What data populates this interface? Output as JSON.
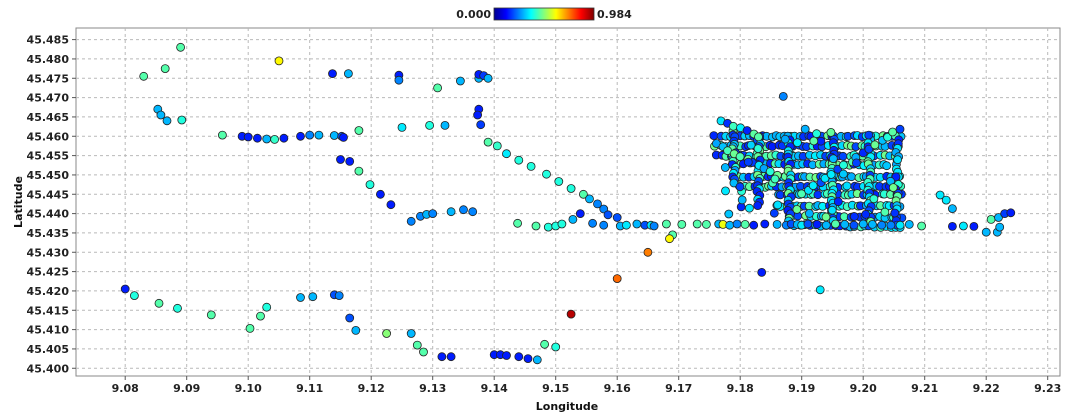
{
  "chart_data": {
    "type": "scatter",
    "title": "",
    "xlabel": "Longitude",
    "ylabel": "Latitude",
    "xlim": [
      9.072,
      9.232
    ],
    "ylim": [
      45.398,
      45.488
    ],
    "x_ticks": [
      "9.08",
      "9.09",
      "9.10",
      "9.11",
      "9.12",
      "9.13",
      "9.14",
      "9.15",
      "9.16",
      "9.17",
      "9.18",
      "9.19",
      "9.20",
      "9.21",
      "9.22",
      "9.23"
    ],
    "y_ticks": [
      "45.400",
      "45.405",
      "45.410",
      "45.415",
      "45.420",
      "45.425",
      "45.430",
      "45.435",
      "45.440",
      "45.445",
      "45.450",
      "45.455",
      "45.460",
      "45.465",
      "45.470",
      "45.475",
      "45.480",
      "45.485"
    ],
    "grid": true,
    "colorbar": {
      "min_label": "0.000",
      "max_label": "0.984",
      "min": 0.0,
      "max": 0.984,
      "colormap": "jet",
      "placement": "top-center"
    },
    "points": [
      [
        9.083,
        45.4755,
        0.45
      ],
      [
        9.0865,
        45.4775,
        0.45
      ],
      [
        9.089,
        45.483,
        0.45
      ],
      [
        9.105,
        45.4795,
        0.62
      ],
      [
        9.0853,
        45.467,
        0.3
      ],
      [
        9.0858,
        45.4655,
        0.3
      ],
      [
        9.0868,
        45.464,
        0.3
      ],
      [
        9.0892,
        45.4642,
        0.4
      ],
      [
        9.0958,
        45.4603,
        0.45
      ],
      [
        9.099,
        45.46,
        0.15
      ],
      [
        9.1,
        45.4598,
        0.15
      ],
      [
        9.1015,
        45.4595,
        0.15
      ],
      [
        9.103,
        45.4593,
        0.3
      ],
      [
        9.1043,
        45.4592,
        0.42
      ],
      [
        9.1058,
        45.4595,
        0.15
      ],
      [
        9.1085,
        45.46,
        0.15
      ],
      [
        9.11,
        45.4603,
        0.25
      ],
      [
        9.1115,
        45.4603,
        0.3
      ],
      [
        9.114,
        45.4602,
        0.3
      ],
      [
        9.1152,
        45.46,
        0.2
      ],
      [
        9.1155,
        45.4597,
        0.15
      ],
      [
        9.1137,
        45.4762,
        0.15
      ],
      [
        9.1163,
        45.4762,
        0.3
      ],
      [
        9.1245,
        45.4758,
        0.15
      ],
      [
        9.1245,
        45.4745,
        0.25
      ],
      [
        9.118,
        45.4615,
        0.45
      ],
      [
        9.125,
        45.4623,
        0.35
      ],
      [
        9.1295,
        45.4628,
        0.4
      ],
      [
        9.132,
        45.4628,
        0.3
      ],
      [
        9.1308,
        45.4725,
        0.45
      ],
      [
        9.1345,
        45.4743,
        0.3
      ],
      [
        9.1375,
        45.475,
        0.3
      ],
      [
        9.1375,
        45.476,
        0.15
      ],
      [
        9.1383,
        45.4757,
        0.18
      ],
      [
        9.139,
        45.475,
        0.3
      ],
      [
        9.1375,
        45.467,
        0.15
      ],
      [
        9.1373,
        45.4655,
        0.15
      ],
      [
        9.1378,
        45.463,
        0.18
      ],
      [
        9.139,
        45.4585,
        0.45
      ],
      [
        9.1405,
        45.4575,
        0.42
      ],
      [
        9.142,
        45.4555,
        0.35
      ],
      [
        9.144,
        45.4538,
        0.4
      ],
      [
        9.146,
        45.4522,
        0.4
      ],
      [
        9.1485,
        45.4502,
        0.4
      ],
      [
        9.1505,
        45.4483,
        0.4
      ],
      [
        9.1525,
        45.4465,
        0.4
      ],
      [
        9.1545,
        45.445,
        0.45
      ],
      [
        9.1555,
        45.4438,
        0.3
      ],
      [
        9.1568,
        45.4425,
        0.25
      ],
      [
        9.1578,
        45.4412,
        0.25
      ],
      [
        9.1585,
        45.4397,
        0.2
      ],
      [
        9.16,
        45.439,
        0.2
      ],
      [
        9.115,
        45.454,
        0.15
      ],
      [
        9.1165,
        45.4535,
        0.15
      ],
      [
        9.118,
        45.451,
        0.45
      ],
      [
        9.1198,
        45.4475,
        0.4
      ],
      [
        9.1215,
        45.445,
        0.15
      ],
      [
        9.1232,
        45.4423,
        0.15
      ],
      [
        9.1265,
        45.438,
        0.25
      ],
      [
        9.128,
        45.4393,
        0.25
      ],
      [
        9.129,
        45.4398,
        0.3
      ],
      [
        9.13,
        45.44,
        0.25
      ],
      [
        9.133,
        45.4405,
        0.3
      ],
      [
        9.135,
        45.441,
        0.25
      ],
      [
        9.1365,
        45.4405,
        0.25
      ],
      [
        9.1438,
        45.4375,
        0.45
      ],
      [
        9.1468,
        45.4368,
        0.45
      ],
      [
        9.1488,
        45.4365,
        0.4
      ],
      [
        9.15,
        45.4368,
        0.4
      ],
      [
        9.151,
        45.4373,
        0.4
      ],
      [
        9.1528,
        45.4385,
        0.3
      ],
      [
        9.154,
        45.44,
        0.15
      ],
      [
        9.156,
        45.4375,
        0.25
      ],
      [
        9.1578,
        45.437,
        0.25
      ],
      [
        9.1605,
        45.4368,
        0.3
      ],
      [
        9.1615,
        45.437,
        0.35
      ],
      [
        9.1632,
        45.4373,
        0.3
      ],
      [
        9.1645,
        45.437,
        0.2
      ],
      [
        9.1655,
        45.437,
        0.35
      ],
      [
        9.166,
        45.4368,
        0.25
      ],
      [
        9.168,
        45.4373,
        0.45
      ],
      [
        9.1705,
        45.4372,
        0.45
      ],
      [
        9.173,
        45.4373,
        0.45
      ],
      [
        9.1745,
        45.4372,
        0.45
      ],
      [
        9.1765,
        45.4373,
        0.3
      ],
      [
        9.1772,
        45.4372,
        0.6
      ],
      [
        9.1783,
        45.437,
        0.3
      ],
      [
        9.1795,
        45.4373,
        0.25
      ],
      [
        9.1808,
        45.4372,
        0.45
      ],
      [
        9.1822,
        45.437,
        0.15
      ],
      [
        9.184,
        45.4373,
        0.15
      ],
      [
        9.186,
        45.4372,
        0.3
      ],
      [
        9.1875,
        45.437,
        0.25
      ],
      [
        9.1883,
        45.4373,
        0.2
      ],
      [
        9.1893,
        45.4372,
        0.3
      ],
      [
        9.19,
        45.437,
        0.35
      ],
      [
        9.191,
        45.4373,
        0.2
      ],
      [
        9.1925,
        45.4372,
        0.15
      ],
      [
        9.194,
        45.437,
        0.3
      ],
      [
        9.1955,
        45.4373,
        0.45
      ],
      [
        9.197,
        45.4372,
        0.3
      ],
      [
        9.1985,
        45.437,
        0.2
      ],
      [
        9.2,
        45.4373,
        0.3
      ],
      [
        9.2015,
        45.4372,
        0.3
      ],
      [
        9.203,
        45.437,
        0.25
      ],
      [
        9.2045,
        45.437,
        0.25
      ],
      [
        9.206,
        45.437,
        0.35
      ],
      [
        9.2075,
        45.4372,
        0.3
      ],
      [
        9.2095,
        45.4368,
        0.45
      ],
      [
        9.2145,
        45.4367,
        0.15
      ],
      [
        9.2163,
        45.4368,
        0.35
      ],
      [
        9.218,
        45.4367,
        0.15
      ],
      [
        9.2125,
        45.4448,
        0.35
      ],
      [
        9.2135,
        45.4435,
        0.35
      ],
      [
        9.2145,
        45.4413,
        0.3
      ],
      [
        9.2208,
        45.4385,
        0.45
      ],
      [
        9.222,
        45.439,
        0.3
      ],
      [
        9.223,
        45.44,
        0.18
      ],
      [
        9.224,
        45.4402,
        0.15
      ],
      [
        9.22,
        45.4352,
        0.3
      ],
      [
        9.2218,
        45.4352,
        0.3
      ],
      [
        9.2222,
        45.4365,
        0.3
      ],
      [
        9.169,
        45.4345,
        0.45
      ],
      [
        9.1685,
        45.4335,
        0.62
      ],
      [
        9.165,
        45.43,
        0.74
      ],
      [
        9.16,
        45.4232,
        0.76
      ],
      [
        9.1525,
        45.414,
        0.93
      ],
      [
        9.1835,
        45.4248,
        0.15
      ],
      [
        9.193,
        45.4203,
        0.35
      ],
      [
        9.187,
        45.4703,
        0.25
      ],
      [
        9.08,
        45.4205,
        0.15
      ],
      [
        9.0815,
        45.4188,
        0.4
      ],
      [
        9.0855,
        45.4168,
        0.45
      ],
      [
        9.0885,
        45.4155,
        0.4
      ],
      [
        9.094,
        45.4138,
        0.45
      ],
      [
        9.1003,
        45.4103,
        0.45
      ],
      [
        9.102,
        45.4135,
        0.45
      ],
      [
        9.103,
        45.4158,
        0.4
      ],
      [
        9.1085,
        45.4183,
        0.3
      ],
      [
        9.1105,
        45.4185,
        0.3
      ],
      [
        9.114,
        45.419,
        0.2
      ],
      [
        9.1148,
        45.4188,
        0.25
      ],
      [
        9.1165,
        45.413,
        0.2
      ],
      [
        9.1175,
        45.4098,
        0.3
      ],
      [
        9.1225,
        45.409,
        0.5
      ],
      [
        9.1265,
        45.409,
        0.3
      ],
      [
        9.1275,
        45.406,
        0.45
      ],
      [
        9.1285,
        45.4042,
        0.45
      ],
      [
        9.1315,
        45.403,
        0.15
      ],
      [
        9.133,
        45.403,
        0.15
      ],
      [
        9.14,
        45.4035,
        0.15
      ],
      [
        9.141,
        45.4035,
        0.15
      ],
      [
        9.142,
        45.4033,
        0.15
      ],
      [
        9.144,
        45.403,
        0.15
      ],
      [
        9.1455,
        45.4025,
        0.15
      ],
      [
        9.147,
        45.4022,
        0.3
      ],
      [
        9.1482,
        45.4062,
        0.45
      ],
      [
        9.15,
        45.4055,
        0.4
      ]
    ]
  }
}
